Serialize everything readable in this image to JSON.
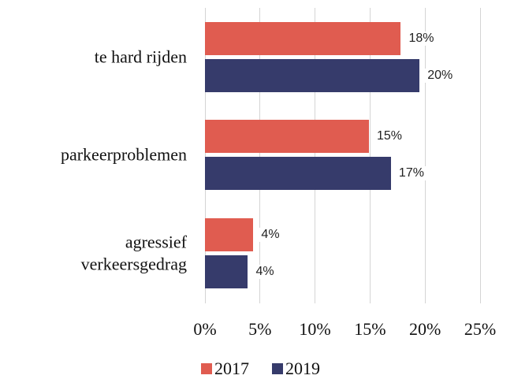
{
  "chart_data": {
    "type": "bar",
    "orientation": "horizontal",
    "categories": [
      "te hard rijden",
      "parkeerproblemen",
      "agressief verkeersgedrag"
    ],
    "series": [
      {
        "name": "2017",
        "color": "#e05c50",
        "values": [
          17.8,
          14.9,
          4.4
        ],
        "value_labels": [
          "18%",
          "15%",
          "4%"
        ]
      },
      {
        "name": "2019",
        "color": "#363b6b",
        "values": [
          19.5,
          16.9,
          3.9
        ],
        "value_labels": [
          "20%",
          "17%",
          "4%"
        ]
      }
    ],
    "xlim": [
      0,
      25
    ],
    "xticks": [
      {
        "value": 0,
        "label": "0%"
      },
      {
        "value": 5,
        "label": "5%"
      },
      {
        "value": 10,
        "label": "10%"
      },
      {
        "value": 15,
        "label": "15%"
      },
      {
        "value": 20,
        "label": "20%"
      },
      {
        "value": 25,
        "label": "25%"
      }
    ],
    "grid": true,
    "legend": "bottom"
  }
}
